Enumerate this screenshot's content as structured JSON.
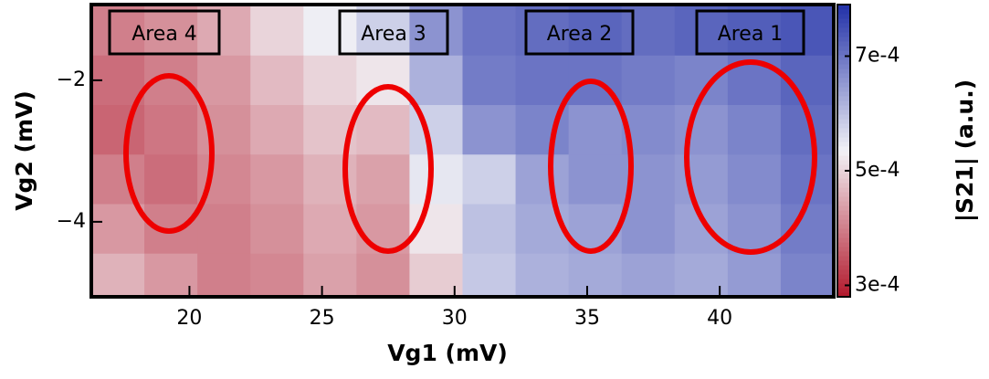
{
  "chart_data": {
    "type": "heatmap",
    "xlabel": "Vg1 (mV)",
    "ylabel": "Vg2 (mV)",
    "colorbar_label": "|S21| (a.u.)",
    "xlim": [
      16.3,
      44.3
    ],
    "ylim": [
      -5.06,
      -0.93
    ],
    "xticks": [
      20,
      25,
      30,
      35,
      40
    ],
    "yticks": [
      {
        "value": -2,
        "label": "−2"
      },
      {
        "value": -4,
        "label": "−4"
      }
    ],
    "clim": [
      0.00028,
      0.00079
    ],
    "cticks": [
      {
        "value": 0.0007,
        "label": "7e-4"
      },
      {
        "value": 0.0005,
        "label": "5e-4"
      },
      {
        "value": 0.0003,
        "label": "3e-4"
      }
    ],
    "colormap": [
      "#b2182b",
      "#f2f2f6",
      "#2130a8"
    ],
    "x": [
      17.3,
      19.3,
      21.3,
      23.3,
      25.3,
      27.3,
      29.3,
      31.3,
      33.3,
      35.3,
      37.3,
      39.3,
      41.3,
      43.3
    ],
    "y": [
      -1.3,
      -2.0,
      -2.7,
      -3.4,
      -4.1,
      -4.8
    ],
    "z": [
      [
        0.0004,
        0.00042,
        0.00045,
        0.0005,
        0.00054,
        0.00058,
        0.00066,
        0.0007,
        0.00071,
        0.00072,
        0.00071,
        0.00072,
        0.00073,
        0.00074
      ],
      [
        0.00038,
        0.0004,
        0.00043,
        0.00047,
        0.0005,
        0.00052,
        0.00062,
        0.00069,
        0.0007,
        0.0007,
        0.00069,
        0.00068,
        0.0007,
        0.00072
      ],
      [
        0.00037,
        0.00039,
        0.00042,
        0.00045,
        0.00048,
        0.00047,
        0.00058,
        0.00066,
        0.00068,
        0.00066,
        0.00067,
        0.00066,
        0.00068,
        0.00071
      ],
      [
        0.0004,
        0.00038,
        0.00041,
        0.00043,
        0.00046,
        0.00044,
        0.00055,
        0.00058,
        0.00064,
        0.00066,
        0.00066,
        0.00065,
        0.00067,
        0.0007
      ],
      [
        0.00043,
        0.0004,
        0.0004,
        0.00042,
        0.00045,
        0.00043,
        0.00052,
        0.0006,
        0.00063,
        0.00064,
        0.00066,
        0.00064,
        0.00066,
        0.00069
      ],
      [
        0.00046,
        0.00043,
        0.0004,
        0.00041,
        0.00044,
        0.00042,
        0.00049,
        0.00059,
        0.00062,
        0.00063,
        0.00064,
        0.00063,
        0.00065,
        0.00068
      ]
    ],
    "annotations": [
      "Area 4",
      "Area 3",
      "Area 2",
      "Area 1"
    ]
  }
}
